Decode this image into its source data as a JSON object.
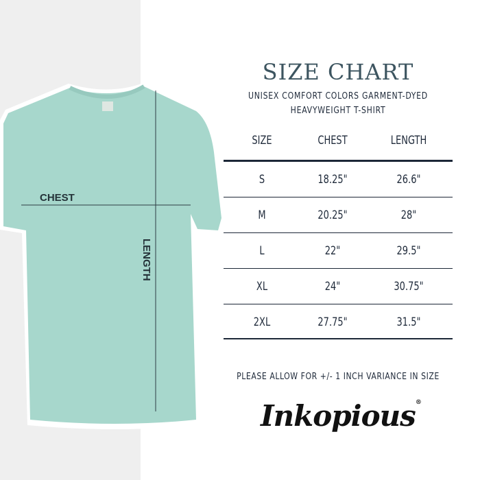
{
  "title": "SIZE CHART",
  "subtitle_line1": "UNISEX COMFORT COLORS GARMENT-DYED",
  "subtitle_line2": "HEAVYWEIGHT T-SHIRT",
  "table": {
    "headers": [
      "SIZE",
      "CHEST",
      "LENGTH"
    ],
    "rows": [
      [
        "S",
        "18.25\"",
        "26.6\""
      ],
      [
        "M",
        "20.25\"",
        "28\""
      ],
      [
        "L",
        "22\"",
        "29.5\""
      ],
      [
        "XL",
        "24\"",
        "30.75\""
      ],
      [
        "2XL",
        "27.75\"",
        "31.5\""
      ]
    ]
  },
  "note": "PLEASE ALLOW FOR +/- 1 INCH VARIANCE IN SIZE",
  "brand": "Inkopious",
  "shirt": {
    "chest_label": "CHEST",
    "length_label": "LENGTH",
    "color": "#a7d7cc"
  }
}
